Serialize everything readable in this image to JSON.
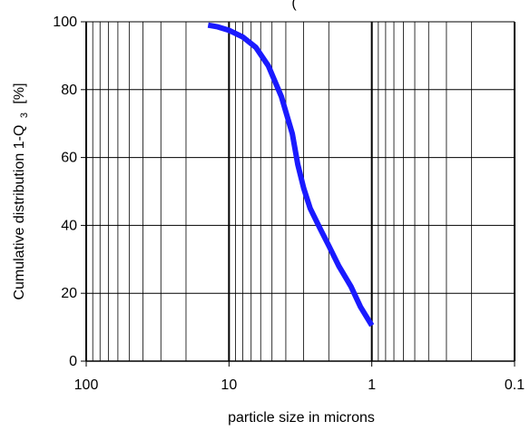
{
  "chart_data": {
    "type": "line",
    "title": "(",
    "xlabel": "particle size in microns",
    "ylabel": "Cumulative distribution 1-Q",
    "ylabel_subscript": "3",
    "ylabel_unit": "[%]",
    "x_scale": "log",
    "x_reversed": true,
    "xlim": [
      100,
      0.1
    ],
    "ylim": [
      0,
      100
    ],
    "x_ticks": [
      100,
      10,
      1,
      0.1
    ],
    "x_tick_labels": [
      "100",
      "10",
      "1",
      "0.1"
    ],
    "y_ticks": [
      0,
      20,
      40,
      60,
      80,
      100
    ],
    "y_tick_labels": [
      "0",
      "20",
      "40",
      "60",
      "80",
      "100"
    ],
    "grid": true,
    "legend": "none",
    "series": [
      {
        "color": "#1a1aff",
        "x": [
          14,
          12,
          10,
          8,
          6.5,
          5.3,
          4.3,
          3.6,
          3.3,
          3.0,
          2.7,
          2.3,
          2.0,
          1.7,
          1.4,
          1.2,
          1.0
        ],
        "y": [
          99,
          98.5,
          97.5,
          95.5,
          92.5,
          87,
          78,
          67,
          58,
          51,
          45,
          39,
          34,
          28,
          22,
          16,
          10.5
        ]
      }
    ]
  }
}
